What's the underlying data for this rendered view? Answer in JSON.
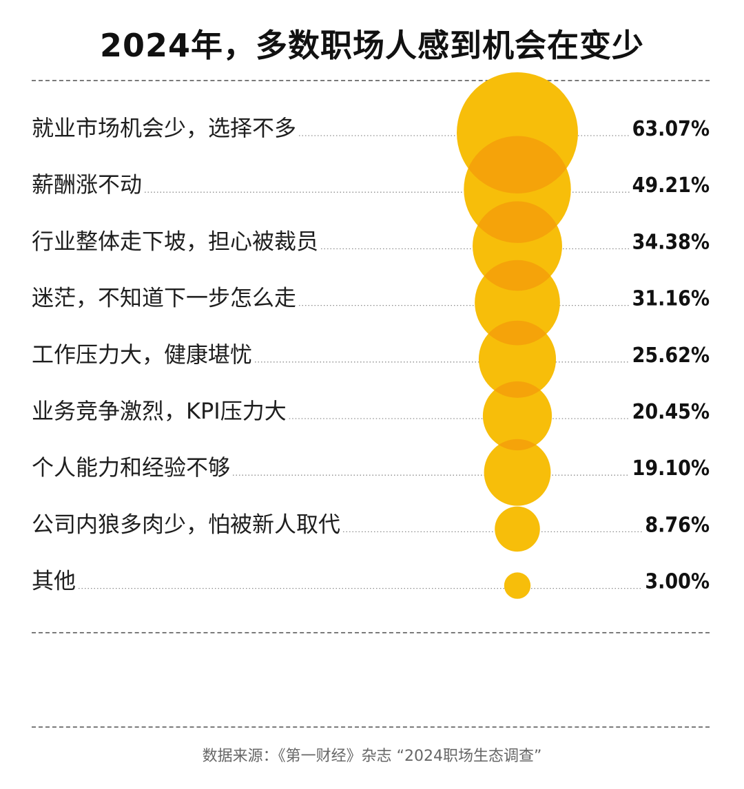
{
  "title": "2024年，多数职场人感到机会在变少",
  "source": "数据来源：《第一财经》杂志 “2024职场生态调查”",
  "colors": {
    "bubble": "#F7BE0A",
    "overlap": "#F5A30A",
    "dots": "#8a8a8a"
  },
  "chart_data": {
    "type": "bubble",
    "title": "2024年，多数职场人感到机会在变少",
    "categories": [
      "就业市场机会少，选择不多",
      "薪酬涨不动",
      "行业整体走下坡，担心被裁员",
      "迷茫，不知道下一步怎么走",
      "工作压力大，健康堪忧",
      "业务竞争激烈，KPI压力大",
      "个人能力和经验不够",
      "公司内狼多肉少，怕被新人取代",
      "其他"
    ],
    "values": [
      63.07,
      49.21,
      34.38,
      31.16,
      25.62,
      20.45,
      19.1,
      8.76,
      3.0
    ],
    "value_labels": [
      "63.07%",
      "49.21%",
      "34.38%",
      "31.16%",
      "25.62%",
      "20.45%",
      "19.10%",
      "8.76%",
      "3.00%"
    ],
    "unit": "%"
  }
}
